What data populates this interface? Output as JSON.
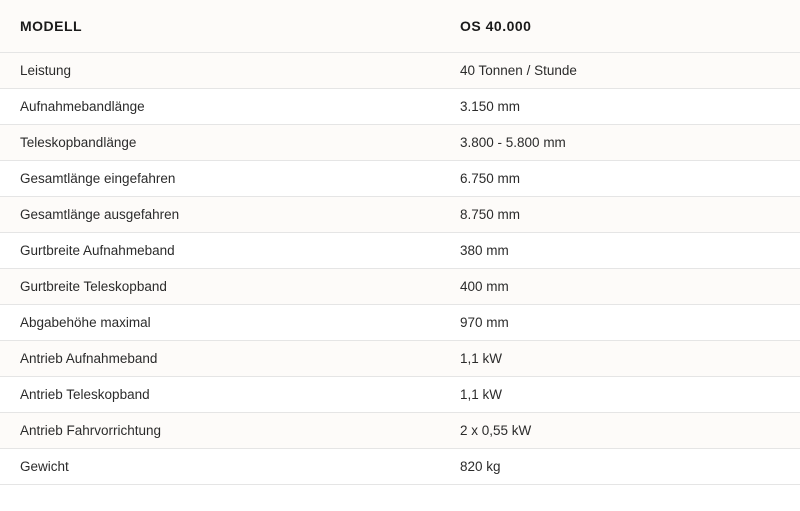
{
  "table": {
    "type": "table",
    "background_color": "#ffffff",
    "alt_row_color": "#fdfbf9",
    "border_color": "#e5e5e5",
    "header_text_color": "#1a1a1a",
    "body_text_color": "#2b2b2b",
    "header_fontsize": 14,
    "body_fontsize": 13.5,
    "header_fontweight": 700,
    "body_fontweight": 400,
    "column_widths_pct": [
      55,
      45
    ],
    "columns": [
      "MODELL",
      "OS 40.000"
    ],
    "rows": [
      [
        "Leistung",
        "40 Tonnen / Stunde"
      ],
      [
        "Aufnahmebandlänge",
        "3.150 mm"
      ],
      [
        "Teleskopbandlänge",
        "3.800 - 5.800 mm"
      ],
      [
        "Gesamtlänge eingefahren",
        "6.750 mm"
      ],
      [
        "Gesamtlänge ausgefahren",
        "8.750 mm"
      ],
      [
        "Gurtbreite Aufnahmeband",
        "380 mm"
      ],
      [
        "Gurtbreite Teleskopband",
        "400 mm"
      ],
      [
        "Abgabehöhe maximal",
        "970 mm"
      ],
      [
        "Antrieb Aufnahmeband",
        "1,1 kW"
      ],
      [
        "Antrieb Teleskopband",
        "1,1 kW"
      ],
      [
        "Antrieb Fahrvorrichtung",
        "2 x 0,55 kW"
      ],
      [
        "Gewicht",
        "820 kg"
      ]
    ]
  }
}
